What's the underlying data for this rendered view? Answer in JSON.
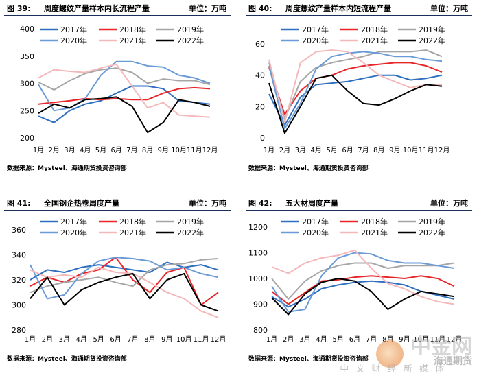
{
  "months": [
    "1月",
    "2月",
    "3月",
    "4月",
    "5月",
    "6月",
    "7月",
    "8月",
    "9月",
    "10月",
    "11月",
    "12月"
  ],
  "legend": [
    "2017年",
    "2018年",
    "2019年",
    "2020年",
    "2021年",
    "2022年"
  ],
  "source": "数据来源：Mysteel、海通期货投资咨询部",
  "watermark": {
    "brand": "中金网",
    "sub": "海通期货",
    "tagline": "中 文 财 经 新 媒 体"
  },
  "colors": {
    "2017年": "#2e6fbf",
    "2018年": "#e8262a",
    "2019年": "#a6a6a6",
    "2020年": "#6a9bd6",
    "2021年": "#f4b8ba",
    "2022年": "#000000"
  },
  "chart_data": [
    {
      "type": "line",
      "figure": "图 39:",
      "title": "周度螺纹产量样本内长流程产量",
      "unit": "单位：万吨",
      "ylim": [
        200,
        400
      ],
      "yticks": [
        200,
        250,
        300,
        350,
        400
      ],
      "x": [
        "1月",
        "2月",
        "3月",
        "4月",
        "5月",
        "6月",
        "7月",
        "8月",
        "9月",
        "10月",
        "11月",
        "12月"
      ],
      "series": [
        {
          "name": "2017年",
          "values": [
            240,
            228,
            250,
            262,
            268,
            282,
            295,
            295,
            290,
            268,
            265,
            262
          ]
        },
        {
          "name": "2018年",
          "values": [
            262,
            265,
            268,
            272,
            270,
            272,
            270,
            270,
            282,
            290,
            292,
            290
          ]
        },
        {
          "name": "2019年",
          "values": [
            302,
            288,
            305,
            318,
            325,
            328,
            320,
            300,
            308,
            305,
            305,
            298
          ]
        },
        {
          "name": "2020年",
          "values": [
            298,
            250,
            255,
            272,
            315,
            340,
            340,
            332,
            330,
            315,
            310,
            300
          ]
        },
        {
          "name": "2021年",
          "values": [
            310,
            325,
            322,
            320,
            328,
            335,
            295,
            255,
            265,
            242,
            240,
            238
          ]
        },
        {
          "name": "2022年",
          "values": [
            245,
            262,
            255,
            270,
            272,
            275,
            258,
            210,
            228,
            270,
            265,
            258
          ]
        }
      ]
    },
    {
      "type": "line",
      "figure": "图 40:",
      "title": "周度螺纹产量样本内短流程产量",
      "unit": "单位：万吨",
      "ylim": [
        0,
        60
      ],
      "yticks": [
        0,
        20,
        40,
        60
      ],
      "x": [
        "1月",
        "2月",
        "3月",
        "4月",
        "5月",
        "6月",
        "7月",
        "8月",
        "9月",
        "10月",
        "11月",
        "12月"
      ],
      "series": [
        {
          "name": "2017年",
          "values": [
            28,
            8,
            26,
            34,
            35,
            36,
            38,
            40,
            40,
            37,
            38,
            40
          ]
        },
        {
          "name": "2018年",
          "values": [
            45,
            15,
            30,
            38,
            40,
            44,
            46,
            47,
            48,
            48,
            46,
            42
          ]
        },
        {
          "name": "2019年",
          "values": [
            48,
            12,
            36,
            45,
            48,
            50,
            52,
            55,
            55,
            55,
            56,
            52
          ]
        },
        {
          "name": "2020年",
          "values": [
            46,
            6,
            22,
            44,
            52,
            54,
            55,
            54,
            52,
            52,
            50,
            49
          ]
        },
        {
          "name": "2021年",
          "values": [
            50,
            10,
            48,
            55,
            56,
            55,
            48,
            40,
            36,
            32,
            34,
            34
          ]
        },
        {
          "name": "2022年",
          "values": [
            35,
            3,
            20,
            38,
            40,
            30,
            22,
            21,
            25,
            30,
            34,
            33
          ]
        }
      ]
    },
    {
      "type": "line",
      "figure": "图 41:",
      "title": "全国钢企热卷周度产量",
      "unit": "单位：万吨",
      "ylim": [
        280,
        360
      ],
      "yticks": [
        280,
        300,
        320,
        340,
        360
      ],
      "x": [
        "1月",
        "2月",
        "3月",
        "4月",
        "5月",
        "6月",
        "7月",
        "8月",
        "9月",
        "10月",
        "11月",
        "12月"
      ],
      "series": [
        {
          "name": "2017年",
          "values": [
            320,
            328,
            326,
            330,
            332,
            330,
            328,
            326,
            334,
            330,
            332,
            328
          ]
        },
        {
          "name": "2018年",
          "values": [
            315,
            322,
            318,
            325,
            328,
            338,
            320,
            310,
            326,
            330,
            300,
            310
          ]
        },
        {
          "name": "2019年",
          "values": [
            310,
            315,
            318,
            320,
            322,
            318,
            315,
            328,
            332,
            333,
            336,
            337
          ]
        },
        {
          "name": "2020年",
          "values": [
            332,
            305,
            308,
            325,
            335,
            338,
            337,
            335,
            328,
            330,
            325,
            322
          ]
        },
        {
          "name": "2021年",
          "values": [
            328,
            322,
            324,
            322,
            330,
            326,
            325,
            318,
            310,
            305,
            295,
            290
          ]
        },
        {
          "name": "2022年",
          "values": [
            305,
            322,
            300,
            312,
            318,
            322,
            325,
            305,
            320,
            325,
            300,
            295
          ]
        }
      ]
    },
    {
      "type": "line",
      "figure": "图 42:",
      "title": "五大材周度产量",
      "unit": "单位：万吨",
      "ylim": [
        800,
        1200
      ],
      "yticks": [
        800,
        900,
        1000,
        1100,
        1200
      ],
      "x": [
        "1月",
        "2月",
        "3月",
        "4月",
        "5月",
        "6月",
        "7月",
        "8月",
        "9月",
        "10月",
        "11月",
        "12月"
      ],
      "series": [
        {
          "name": "2017年",
          "values": [
            930,
            890,
            920,
            960,
            975,
            985,
            990,
            985,
            975,
            950,
            935,
            920
          ]
        },
        {
          "name": "2018年",
          "values": [
            950,
            900,
            945,
            990,
            995,
            1005,
            1010,
            1005,
            1000,
            1010,
            1000,
            970
          ]
        },
        {
          "name": "2019年",
          "values": [
            1000,
            920,
            990,
            1030,
            1050,
            1060,
            1060,
            1040,
            1050,
            1050,
            1050,
            1060
          ]
        },
        {
          "name": "2020年",
          "values": [
            970,
            870,
            880,
            1010,
            1080,
            1100,
            1095,
            1070,
            1060,
            1060,
            1050,
            1040
          ]
        },
        {
          "name": "2021年",
          "values": [
            1045,
            1020,
            1060,
            1080,
            1090,
            1110,
            1040,
            980,
            960,
            930,
            910,
            900
          ]
        },
        {
          "name": "2022年",
          "values": [
            925,
            860,
            940,
            985,
            1000,
            990,
            950,
            880,
            920,
            950,
            940,
            930
          ]
        }
      ]
    }
  ]
}
